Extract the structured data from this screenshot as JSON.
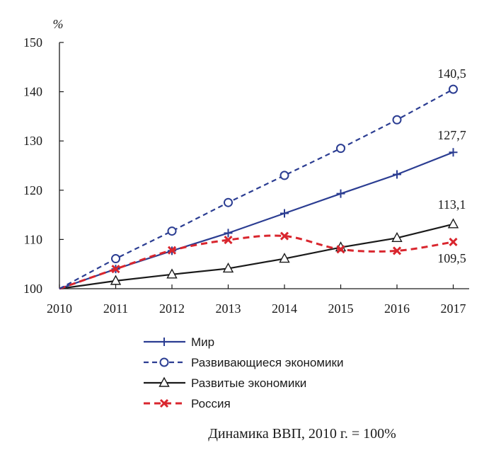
{
  "chart_data": {
    "type": "line",
    "unit_label": "%",
    "caption": "Динамика ВВП, 2010 г. = 100%",
    "x": [
      "2010",
      "2011",
      "2012",
      "2013",
      "2014",
      "2015",
      "2016",
      "2017"
    ],
    "y_ticks": [
      "100",
      "110",
      "120",
      "130",
      "140",
      "150"
    ],
    "ylim": [
      100,
      150
    ],
    "grid": false,
    "legend_position": "bottom",
    "series": [
      {
        "name": "Мир",
        "values": [
          100,
          104.0,
          107.7,
          111.3,
          115.3,
          119.3,
          123.2,
          127.7
        ],
        "color": "#2b3d92",
        "dash": "solid",
        "marker": "plus"
      },
      {
        "name": "Развивающиеся экономики",
        "values": [
          100,
          106.1,
          111.7,
          117.5,
          123.0,
          128.5,
          134.3,
          140.5
        ],
        "color": "#2b3d92",
        "dash": "dashed",
        "marker": "circle"
      },
      {
        "name": "Развитые экономики",
        "values": [
          100,
          101.6,
          102.9,
          104.1,
          106.1,
          108.4,
          110.3,
          113.1
        ],
        "color": "#1a1a1a",
        "dash": "solid",
        "marker": "triangle"
      },
      {
        "name": "Россия",
        "values": [
          100,
          104.0,
          107.8,
          109.9,
          110.7,
          108.0,
          107.7,
          109.5
        ],
        "color": "#d9262e",
        "dash": "dashed",
        "marker": "cross"
      }
    ],
    "annotations": [
      {
        "text": "140,5",
        "series": "Развивающиеся экономики",
        "x": "2017",
        "y": 140.5
      },
      {
        "text": "127,7",
        "series": "Мир",
        "x": "2017",
        "y": 127.7
      },
      {
        "text": "113,1",
        "series": "Развитые экономики",
        "x": "2017",
        "y": 113.1
      },
      {
        "text": "109,5",
        "series": "Россия",
        "x": "2017",
        "y": 109.5
      }
    ]
  }
}
